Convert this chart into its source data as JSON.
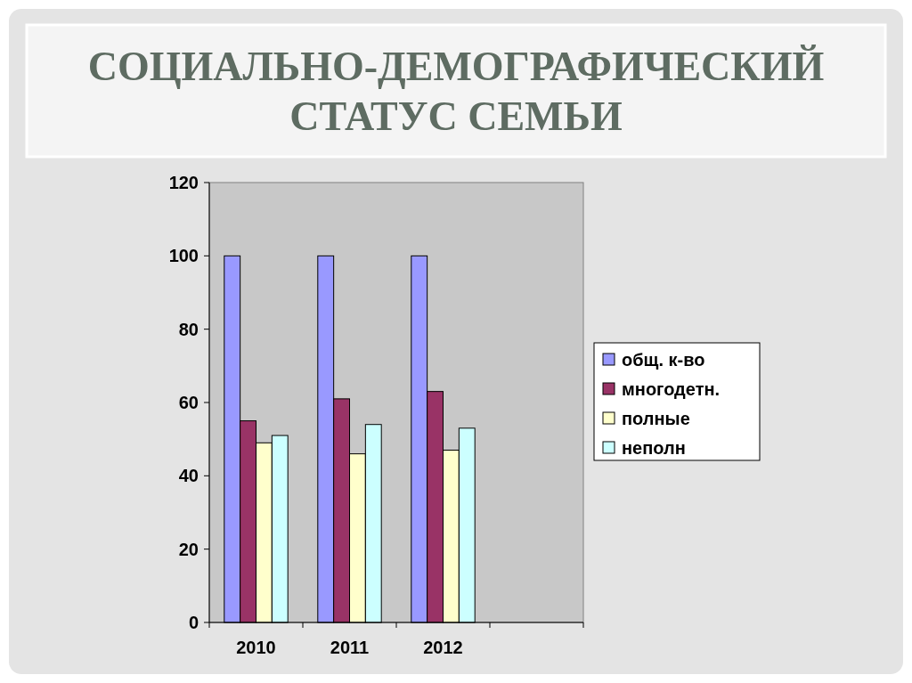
{
  "chart_data": {
    "type": "bar",
    "title": "СОЦИАЛЬНО-ДЕМОГРАФИЧЕСКИЙ СТАТУС СЕМЬИ",
    "categories": [
      "2010",
      "2011",
      "2012",
      null
    ],
    "series": [
      {
        "name": "общ. к-во",
        "color": "#9999ff",
        "values": [
          100,
          100,
          100,
          null
        ]
      },
      {
        "name": "многодетн.",
        "color": "#993366",
        "values": [
          55,
          61,
          63,
          null
        ]
      },
      {
        "name": "полные",
        "color": "#ffffcc",
        "values": [
          49,
          46,
          47,
          null
        ]
      },
      {
        "name": "неполн",
        "color": "#ccffff",
        "values": [
          51,
          54,
          53,
          null
        ]
      }
    ],
    "ylim": [
      0,
      120
    ],
    "yticks": [
      0,
      20,
      40,
      60,
      80,
      100,
      120
    ],
    "grid": false,
    "legend": "right"
  }
}
